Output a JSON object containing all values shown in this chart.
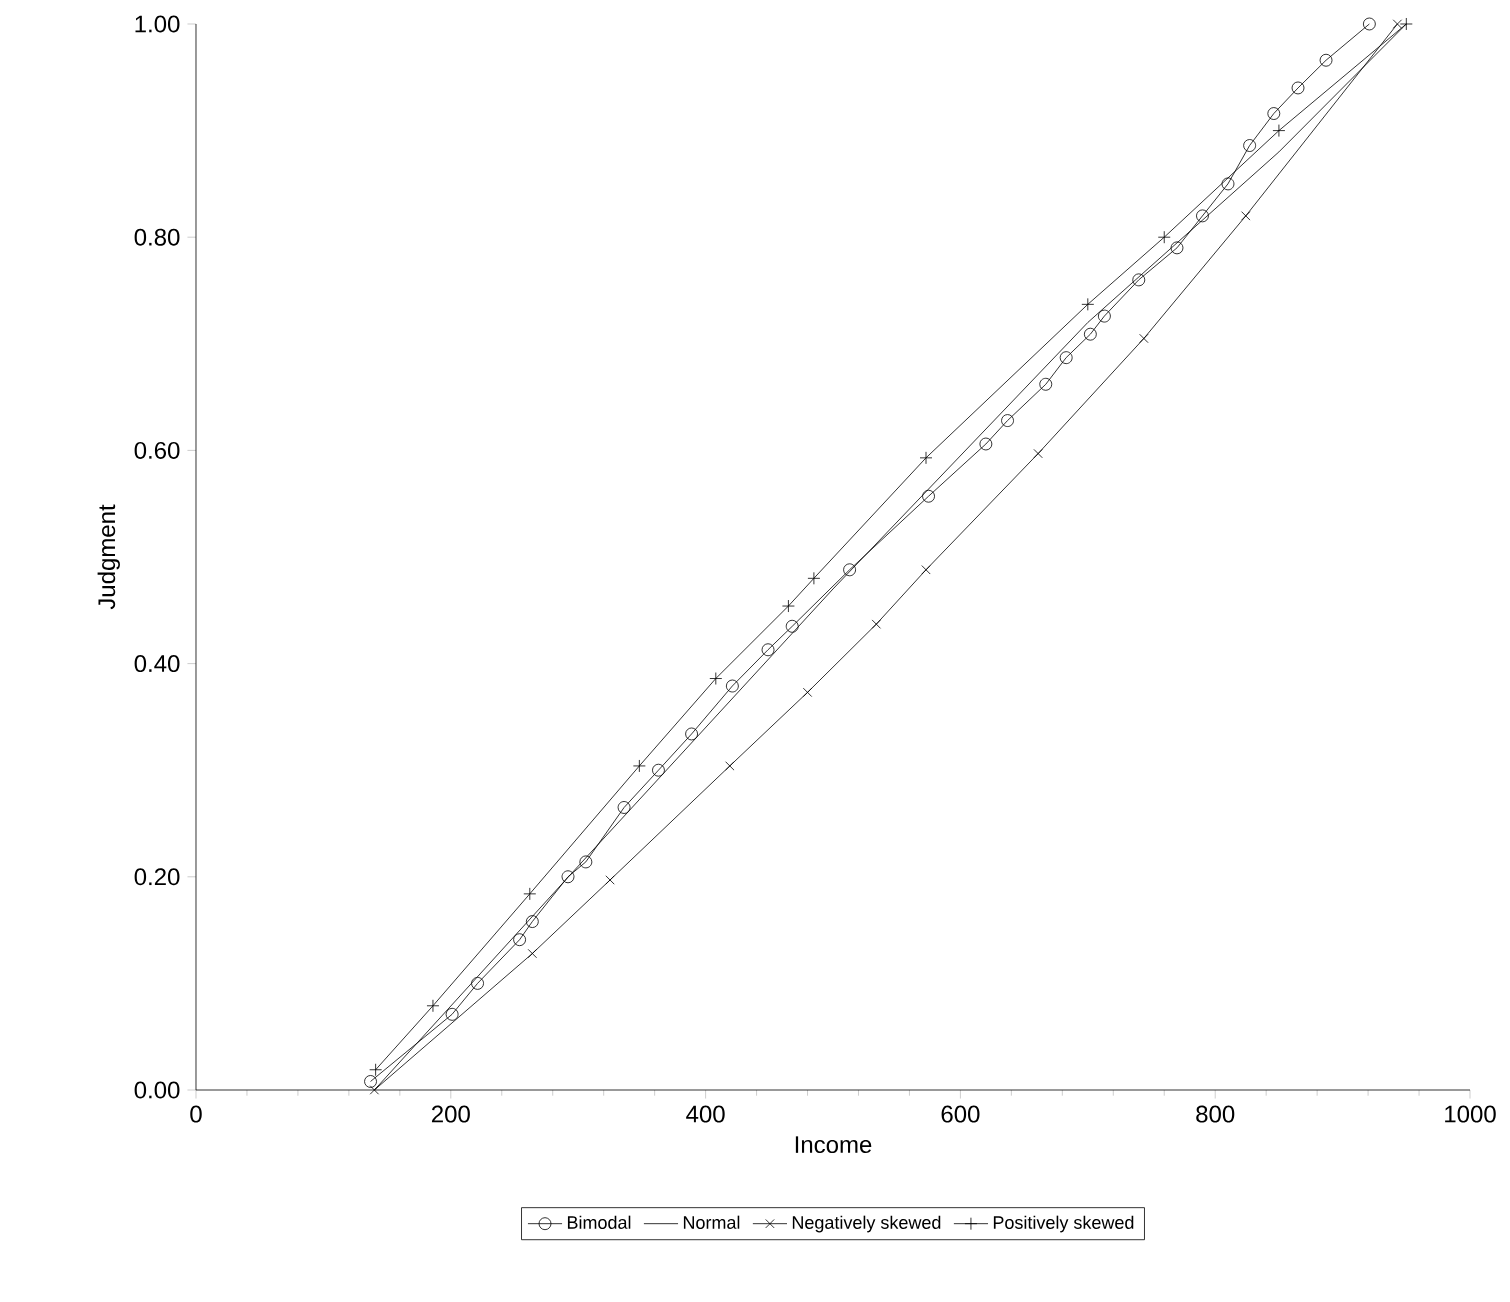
{
  "chart_data": {
    "type": "line",
    "xlabel": "Income",
    "ylabel": "Judgment",
    "xlim": [
      0,
      1000
    ],
    "xticks": [
      0,
      200,
      400,
      600,
      800,
      1000
    ],
    "ylim": [
      0,
      1.0
    ],
    "yticks": [
      {
        "value": 0,
        "label": "0.00"
      },
      {
        "value": 0.2,
        "label": "0.20"
      },
      {
        "value": 0.4,
        "label": "0.40"
      },
      {
        "value": 0.6,
        "label": "0.60"
      },
      {
        "value": 0.8,
        "label": "0.80"
      },
      {
        "value": 1.0,
        "label": "1.00"
      }
    ],
    "grid": false,
    "legend": "bottom",
    "line_style": "solid",
    "series": [
      {
        "name": "Bimodal",
        "color": "#000000",
        "marker": "circle",
        "x": [
          137,
          201,
          221,
          254,
          264,
          292,
          306,
          336,
          363,
          389,
          421,
          449,
          468,
          513,
          575,
          620,
          637,
          667,
          683,
          702,
          713,
          740,
          770,
          790,
          810,
          827,
          846,
          865,
          887,
          921
        ],
        "values": [
          0.008,
          0.071,
          0.1,
          0.141,
          0.158,
          0.2,
          0.214,
          0.265,
          0.3,
          0.334,
          0.379,
          0.413,
          0.435,
          0.488,
          0.557,
          0.606,
          0.628,
          0.662,
          0.687,
          0.709,
          0.726,
          0.76,
          0.79,
          0.82,
          0.85,
          0.886,
          0.916,
          0.94,
          0.966,
          1.0
        ]
      },
      {
        "name": "Normal",
        "color": "#000000",
        "marker": "none",
        "x": [
          140,
          300,
          500,
          700,
          850,
          950
        ],
        "values": [
          0,
          0.21,
          0.47,
          0.72,
          0.88,
          1.0
        ]
      },
      {
        "name": "Negatively skewed",
        "color": "#000000",
        "marker": "cross",
        "x": [
          140,
          264,
          325,
          419,
          480,
          534,
          573,
          661,
          744,
          824,
          943
        ],
        "values": [
          0,
          0.128,
          0.197,
          0.304,
          0.373,
          0.437,
          0.488,
          0.597,
          0.705,
          0.82,
          1.0
        ]
      },
      {
        "name": "Positively skewed",
        "color": "#000000",
        "marker": "plus",
        "x": [
          141,
          186,
          262,
          348,
          408,
          465,
          485,
          573,
          700,
          760,
          850,
          950
        ],
        "values": [
          0.019,
          0.079,
          0.184,
          0.304,
          0.386,
          0.454,
          0.48,
          0.593,
          0.737,
          0.8,
          0.9,
          1.0
        ]
      }
    ]
  }
}
